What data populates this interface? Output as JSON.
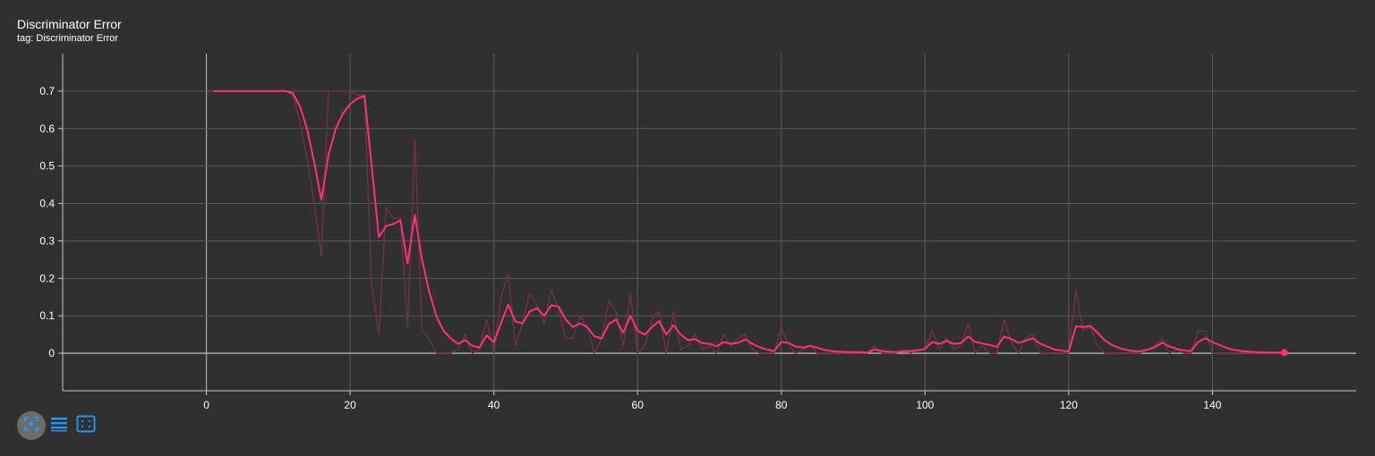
{
  "card": {
    "title": "Discriminator Error",
    "subtitle": "tag: Discriminator Error"
  },
  "toolbar": {
    "fit_icon": "fit-domain-icon",
    "log_icon": "log-scale-icon",
    "zoom_icon": "select-zoom-icon",
    "accent_color": "#2196f3"
  },
  "chart_data": {
    "type": "line",
    "title": "Discriminator Error",
    "xlabel": "",
    "ylabel": "",
    "xlim": [
      -20,
      160
    ],
    "ylim": [
      -0.1,
      0.8
    ],
    "x_ticks": [
      0,
      20,
      40,
      60,
      80,
      100,
      120,
      140
    ],
    "x_tick_labels": [
      "0",
      "20",
      "40",
      "60",
      "80",
      "100",
      "120",
      "140"
    ],
    "y_ticks": [
      0,
      0.1,
      0.2,
      0.3,
      0.4,
      0.5,
      0.6,
      0.7
    ],
    "y_tick_labels": [
      "0",
      "0.1",
      "0.2",
      "0.3",
      "0.4",
      "0.5",
      "0.6",
      "0.7"
    ],
    "grid": true,
    "colors": {
      "smoothed": "#ff2e7e",
      "raw": "#6a3346",
      "grid": "#5a5a5a",
      "zero_line": "#a9a9a9",
      "background": "#303030"
    },
    "series": [
      {
        "role": "raw",
        "x": [
          1,
          2,
          3,
          4,
          5,
          6,
          7,
          8,
          9,
          10,
          11,
          12,
          13,
          14,
          15,
          16,
          17,
          18,
          19,
          20,
          21,
          22,
          23,
          24,
          25,
          26,
          27,
          28,
          29,
          30,
          31,
          32,
          33,
          34,
          35,
          36,
          37,
          38,
          39,
          40,
          41,
          42,
          43,
          44,
          45,
          46,
          47,
          48,
          49,
          50,
          51,
          52,
          53,
          54,
          55,
          56,
          57,
          58,
          59,
          60,
          61,
          62,
          63,
          64,
          65,
          66,
          67,
          68,
          69,
          70,
          71,
          72,
          73,
          74,
          75,
          76,
          77,
          78,
          79,
          80,
          81,
          82,
          83,
          84,
          85,
          86,
          87,
          88,
          89,
          90,
          91,
          92,
          93,
          94,
          95,
          96,
          97,
          98,
          99,
          100,
          101,
          102,
          103,
          104,
          105,
          106,
          107,
          108,
          109,
          110,
          111,
          112,
          113,
          114,
          115,
          116,
          117,
          118,
          119,
          120,
          121,
          122,
          123,
          124,
          125,
          126,
          127,
          128,
          129,
          130,
          131,
          132,
          133,
          134,
          135,
          136,
          137,
          138,
          139,
          140,
          141,
          142,
          143,
          144,
          145,
          146,
          147,
          148,
          149,
          150
        ],
        "y": [
          0.7,
          0.7,
          0.7,
          0.7,
          0.7,
          0.7,
          0.7,
          0.7,
          0.7,
          0.7,
          0.7,
          0.69,
          0.62,
          0.52,
          0.4,
          0.26,
          0.7,
          0.7,
          0.7,
          0.7,
          0.69,
          0.69,
          0.18,
          0.05,
          0.39,
          0.36,
          0.36,
          0.07,
          0.57,
          0.06,
          0.04,
          0.0,
          0.0,
          0.0,
          0.01,
          0.05,
          0.0,
          0.01,
          0.09,
          0.0,
          0.15,
          0.21,
          0.02,
          0.08,
          0.16,
          0.13,
          0.08,
          0.17,
          0.12,
          0.04,
          0.04,
          0.1,
          0.07,
          0.0,
          0.04,
          0.14,
          0.11,
          0.02,
          0.16,
          0.0,
          0.02,
          0.09,
          0.11,
          0.0,
          0.11,
          0.01,
          0.02,
          0.05,
          0.01,
          0.02,
          0.0,
          0.05,
          0.02,
          0.04,
          0.05,
          0.01,
          0.0,
          0.0,
          0.0,
          0.07,
          0.02,
          0.0,
          0.01,
          0.02,
          0.0,
          0.0,
          0.0,
          0.0,
          0.0,
          0.0,
          0.0,
          0.0,
          0.02,
          0.0,
          0.0,
          0.0,
          0.01,
          0.0,
          0.01,
          0.01,
          0.06,
          0.01,
          0.04,
          0.01,
          0.02,
          0.08,
          0.0,
          0.02,
          0.0,
          0.0,
          0.09,
          0.03,
          0.0,
          0.04,
          0.05,
          0.0,
          0.0,
          0.0,
          0.0,
          0.0,
          0.17,
          0.06,
          0.07,
          0.02,
          0.0,
          0.0,
          0.0,
          0.0,
          0.0,
          0.0,
          0.01,
          0.02,
          0.04,
          0.0,
          0.01,
          0.0,
          0.0,
          0.06,
          0.06,
          0.0,
          0.0,
          0.0,
          0.0,
          0.0,
          0.0,
          0.0,
          0.0,
          0.0,
          0.0,
          0.0
        ]
      },
      {
        "role": "smoothed",
        "x": [
          1,
          2,
          3,
          4,
          5,
          6,
          7,
          8,
          9,
          10,
          11,
          12,
          13,
          14,
          15,
          16,
          17,
          18,
          19,
          20,
          21,
          22,
          23,
          24,
          25,
          26,
          27,
          28,
          29,
          30,
          31,
          32,
          33,
          34,
          35,
          36,
          37,
          38,
          39,
          40,
          41,
          42,
          43,
          44,
          45,
          46,
          47,
          48,
          49,
          50,
          51,
          52,
          53,
          54,
          55,
          56,
          57,
          58,
          59,
          60,
          61,
          62,
          63,
          64,
          65,
          66,
          67,
          68,
          69,
          70,
          71,
          72,
          73,
          74,
          75,
          76,
          77,
          78,
          79,
          80,
          81,
          82,
          83,
          84,
          85,
          86,
          87,
          88,
          89,
          90,
          91,
          92,
          93,
          94,
          95,
          96,
          97,
          98,
          99,
          100,
          101,
          102,
          103,
          104,
          105,
          106,
          107,
          108,
          109,
          110,
          111,
          112,
          113,
          114,
          115,
          116,
          117,
          118,
          119,
          120,
          121,
          122,
          123,
          124,
          125,
          126,
          127,
          128,
          129,
          130,
          131,
          132,
          133,
          134,
          135,
          136,
          137,
          138,
          139,
          140,
          141,
          142,
          143,
          144,
          145,
          146,
          147,
          148,
          149,
          150
        ],
        "y": [
          0.7,
          0.7,
          0.7,
          0.7,
          0.7,
          0.7,
          0.7,
          0.7,
          0.7,
          0.7,
          0.7,
          0.695,
          0.66,
          0.6,
          0.51,
          0.41,
          0.53,
          0.6,
          0.64,
          0.665,
          0.68,
          0.687,
          0.5,
          0.31,
          0.34,
          0.345,
          0.355,
          0.24,
          0.37,
          0.25,
          0.165,
          0.1,
          0.06,
          0.04,
          0.025,
          0.035,
          0.02,
          0.015,
          0.048,
          0.03,
          0.08,
          0.13,
          0.085,
          0.08,
          0.112,
          0.12,
          0.1,
          0.128,
          0.125,
          0.09,
          0.07,
          0.08,
          0.07,
          0.045,
          0.04,
          0.078,
          0.09,
          0.055,
          0.1,
          0.06,
          0.05,
          0.07,
          0.086,
          0.05,
          0.075,
          0.05,
          0.035,
          0.038,
          0.027,
          0.025,
          0.019,
          0.03,
          0.025,
          0.028,
          0.037,
          0.025,
          0.016,
          0.01,
          0.006,
          0.03,
          0.028,
          0.018,
          0.015,
          0.02,
          0.015,
          0.009,
          0.006,
          0.004,
          0.003,
          0.003,
          0.003,
          0.002,
          0.01,
          0.006,
          0.004,
          0.003,
          0.005,
          0.006,
          0.008,
          0.012,
          0.03,
          0.025,
          0.033,
          0.025,
          0.027,
          0.045,
          0.03,
          0.026,
          0.022,
          0.017,
          0.045,
          0.038,
          0.028,
          0.034,
          0.04,
          0.026,
          0.018,
          0.01,
          0.007,
          0.005,
          0.072,
          0.07,
          0.073,
          0.055,
          0.035,
          0.022,
          0.014,
          0.009,
          0.006,
          0.005,
          0.01,
          0.016,
          0.028,
          0.018,
          0.012,
          0.008,
          0.006,
          0.03,
          0.04,
          0.03,
          0.022,
          0.014,
          0.009,
          0.006,
          0.004,
          0.003,
          0.002,
          0.002,
          0.002,
          0.002
        ]
      }
    ]
  }
}
